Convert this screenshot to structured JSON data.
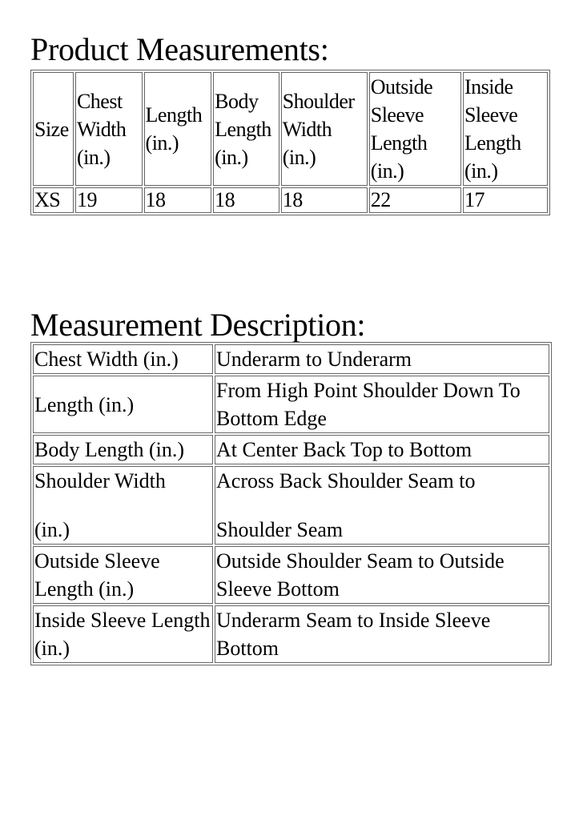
{
  "measurements": {
    "title": "Product Measurements:",
    "headers": [
      "Size",
      "Chest Width (in.)",
      "Length (in.)",
      "Body Length (in.)",
      "Shoulder Width (in.)",
      "Outside Sleeve Length (in.)",
      "Inside Sleeve Length (in.)"
    ],
    "rows": [
      [
        "XS",
        "19",
        "18",
        "18",
        "18",
        "22",
        "17"
      ]
    ]
  },
  "description": {
    "title": "Measurement Description:",
    "rows": [
      {
        "label": "Chest Width (in.)",
        "desc": "Underarm to Underarm"
      },
      {
        "label": "Length (in.)",
        "desc": "From High Point Shoulder Down To Bottom Edge"
      },
      {
        "label": "Body Length (in.)",
        "desc": "At Center Back Top to Bottom"
      },
      {
        "label_lines": [
          "Shoulder Width",
          "(in.)"
        ],
        "desc_lines": [
          "Across Back Shoulder Seam to",
          "Shoulder Seam"
        ]
      },
      {
        "label": "Outside Sleeve Length (in.)",
        "desc": "Outside Shoulder Seam to Outside Sleeve Bottom"
      },
      {
        "label": "Inside Sleeve Length (in.)",
        "desc": "Underarm Seam to Inside Sleeve Bottom"
      }
    ]
  }
}
